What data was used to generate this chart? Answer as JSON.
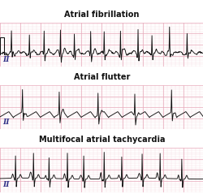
{
  "title1": "Atrial fibrillation",
  "title2": "Atrial flutter",
  "title3": "Multifocal atrial tachycardia",
  "label": "II",
  "bg_color": "#f9d8e0",
  "grid_major_color": "#e8aabb",
  "ecg_color": "#111111",
  "title_fontsize": 7.0,
  "label_fontsize": 6.5,
  "fig_width": 2.51,
  "fig_height": 2.39,
  "white_gap_color": "#ffffff",
  "border_color": "#cccccc"
}
